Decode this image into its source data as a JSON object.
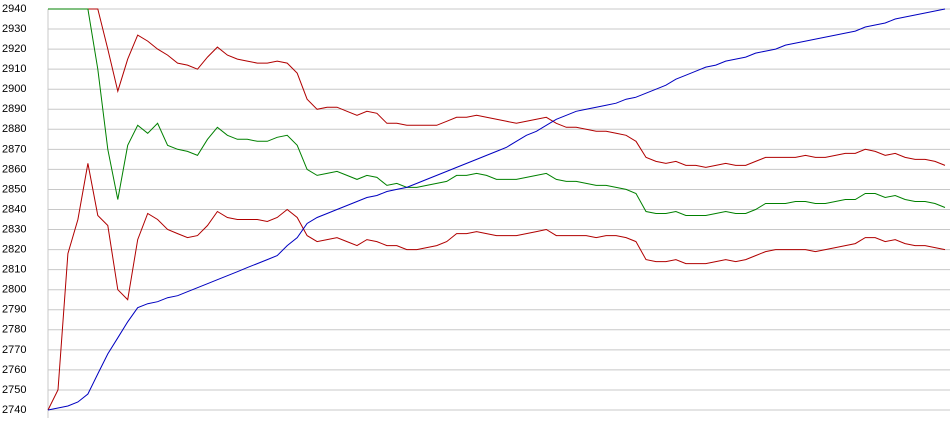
{
  "chart_data": {
    "type": "line",
    "ylim": [
      2740,
      2940
    ],
    "yticks": [
      2740,
      2750,
      2760,
      2770,
      2780,
      2790,
      2800,
      2810,
      2820,
      2830,
      2840,
      2850,
      2860,
      2870,
      2880,
      2890,
      2900,
      2910,
      2920,
      2930,
      2940
    ],
    "grid": true,
    "series": [
      {
        "color": "#b00000",
        "values": [
          2940,
          2940,
          2940,
          2940,
          2940,
          2940,
          2920,
          2899,
          2915,
          2927,
          2924,
          2920,
          2917,
          2913,
          2912,
          2910,
          2916,
          2921,
          2917,
          2915,
          2914,
          2913,
          2913,
          2914,
          2913,
          2908,
          2895,
          2890,
          2891,
          2891,
          2889,
          2887,
          2889,
          2888,
          2883,
          2883,
          2882,
          2882,
          2882,
          2882,
          2884,
          2886,
          2886,
          2887,
          2886,
          2885,
          2884,
          2883,
          2884,
          2885,
          2886,
          2883,
          2881,
          2881,
          2880,
          2879,
          2879,
          2878,
          2877,
          2874,
          2866,
          2864,
          2863,
          2864,
          2862,
          2862,
          2861,
          2862,
          2863,
          2862,
          2862,
          2864,
          2866,
          2866,
          2866,
          2866,
          2867,
          2866,
          2866,
          2867,
          2868,
          2868,
          2870,
          2869,
          2867,
          2868,
          2866,
          2865,
          2865,
          2864,
          2862
        ]
      },
      {
        "color": "#008000",
        "values": [
          2940,
          2940,
          2940,
          2940,
          2940,
          2910,
          2870,
          2845,
          2872,
          2882,
          2878,
          2883,
          2872,
          2870,
          2869,
          2867,
          2875,
          2881,
          2877,
          2875,
          2875,
          2874,
          2874,
          2876,
          2877,
          2872,
          2860,
          2857,
          2858,
          2859,
          2857,
          2855,
          2857,
          2856,
          2852,
          2853,
          2851,
          2851,
          2852,
          2853,
          2854,
          2857,
          2857,
          2858,
          2857,
          2855,
          2855,
          2855,
          2856,
          2857,
          2858,
          2855,
          2854,
          2854,
          2853,
          2852,
          2852,
          2851,
          2850,
          2848,
          2839,
          2838,
          2838,
          2839,
          2837,
          2837,
          2837,
          2838,
          2839,
          2838,
          2838,
          2840,
          2843,
          2843,
          2843,
          2844,
          2844,
          2843,
          2843,
          2844,
          2845,
          2845,
          2848,
          2848,
          2846,
          2847,
          2845,
          2844,
          2844,
          2843,
          2841
        ]
      },
      {
        "color": "#b00000",
        "values": [
          2740,
          2750,
          2818,
          2835,
          2863,
          2837,
          2832,
          2800,
          2795,
          2825,
          2838,
          2835,
          2830,
          2828,
          2826,
          2827,
          2832,
          2839,
          2836,
          2835,
          2835,
          2835,
          2834,
          2836,
          2840,
          2836,
          2827,
          2824,
          2825,
          2826,
          2824,
          2822,
          2825,
          2824,
          2822,
          2822,
          2820,
          2820,
          2821,
          2822,
          2824,
          2828,
          2828,
          2829,
          2828,
          2827,
          2827,
          2827,
          2828,
          2829,
          2830,
          2827,
          2827,
          2827,
          2827,
          2826,
          2827,
          2827,
          2826,
          2824,
          2815,
          2814,
          2814,
          2815,
          2813,
          2813,
          2813,
          2814,
          2815,
          2814,
          2815,
          2817,
          2819,
          2820,
          2820,
          2820,
          2820,
          2819,
          2820,
          2821,
          2822,
          2823,
          2826,
          2826,
          2824,
          2825,
          2823,
          2822,
          2822,
          2821,
          2820
        ]
      },
      {
        "color": "#0000c0",
        "values": [
          2740,
          2741,
          2742,
          2744,
          2748,
          2758,
          2768,
          2776,
          2784,
          2791,
          2793,
          2794,
          2796,
          2797,
          2799,
          2801,
          2803,
          2805,
          2807,
          2809,
          2811,
          2813,
          2815,
          2817,
          2822,
          2826,
          2833,
          2836,
          2838,
          2840,
          2842,
          2844,
          2846,
          2847,
          2849,
          2850,
          2851,
          2853,
          2855,
          2857,
          2859,
          2861,
          2863,
          2865,
          2867,
          2869,
          2871,
          2874,
          2877,
          2879,
          2882,
          2885,
          2887,
          2889,
          2890,
          2891,
          2892,
          2893,
          2895,
          2896,
          2898,
          2900,
          2902,
          2905,
          2907,
          2909,
          2911,
          2912,
          2914,
          2915,
          2916,
          2918,
          2919,
          2920,
          2922,
          2923,
          2924,
          2925,
          2926,
          2927,
          2928,
          2929,
          2931,
          2932,
          2933,
          2935,
          2936,
          2937,
          2938,
          2939,
          2940
        ]
      }
    ]
  }
}
